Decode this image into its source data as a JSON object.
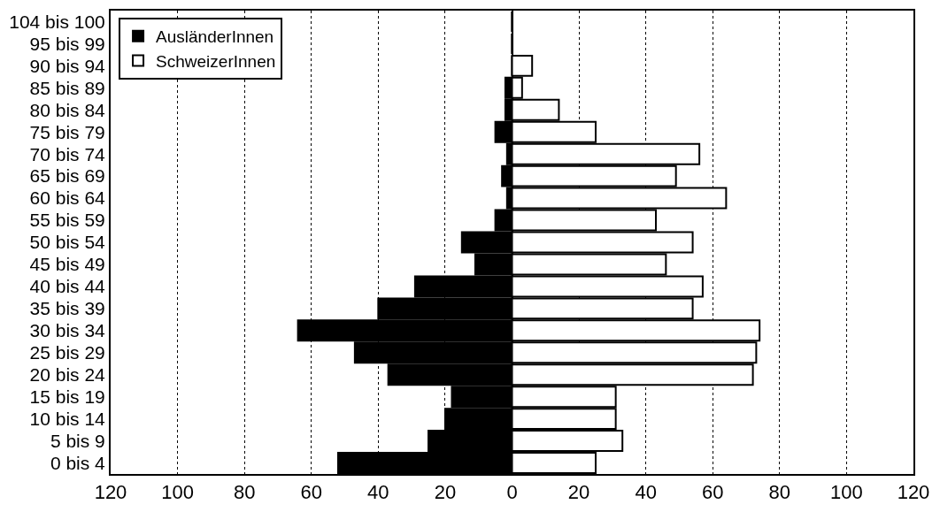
{
  "chart_data": {
    "type": "bar",
    "orientation": "horizontal",
    "stacked": true,
    "categories": [
      "104 bis 100",
      "95 bis 99",
      "90 bis 94",
      "85 bis 89",
      "80 bis 84",
      "75 bis 79",
      "70 bis 74",
      "65 bis 69",
      "60 bis 64",
      "55 bis 59",
      "50 bis 54",
      "45 bis 49",
      "40 bis 44",
      "35 bis 39",
      "30 bis 34",
      "25 bis 29",
      "20 bis 24",
      "15 bis 19",
      "10 bis 14",
      "5 bis 9",
      "0 bis 4"
    ],
    "series": [
      {
        "name": "AusländerInnen",
        "color": "#000000",
        "values": [
          0,
          0,
          0,
          -2,
          -2,
          -5,
          -1.5,
          -3,
          -1.5,
          -5,
          -15,
          -11,
          -29,
          -40,
          -64,
          -47,
          -37,
          -18,
          -20,
          -25,
          -52
        ]
      },
      {
        "name": "SchweizerInnen",
        "color": "#ffffff",
        "values": [
          0,
          0,
          6,
          3,
          14,
          25,
          56,
          49,
          64,
          43,
          54,
          46,
          57,
          54,
          74,
          73,
          72,
          31,
          31,
          33,
          25
        ]
      }
    ],
    "xlim": [
      -120,
      120
    ],
    "xticks": [
      {
        "value": -120,
        "label": "120"
      },
      {
        "value": -100,
        "label": "100"
      },
      {
        "value": -80,
        "label": "80"
      },
      {
        "value": -60,
        "label": "60"
      },
      {
        "value": -40,
        "label": "40"
      },
      {
        "value": -20,
        "label": "20"
      },
      0,
      20,
      40,
      60,
      80,
      100,
      120
    ],
    "grid": "x",
    "legend": "top left"
  }
}
